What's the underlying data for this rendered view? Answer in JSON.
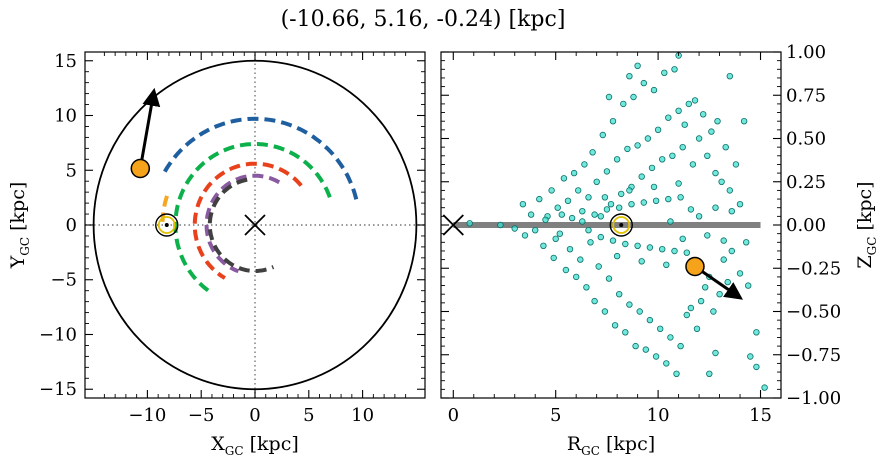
{
  "figure": {
    "title": "(-10.66, 5.16, -0.24) [kpc]"
  },
  "chart_data": [
    {
      "type": "line",
      "panel": "left",
      "xlabel": "X_GC [kpc]",
      "ylabel": "Y_GC [kpc]",
      "xlabel_main": "X",
      "xlabel_sub": "GC",
      "xlabel_unit": " [kpc]",
      "ylabel_main": "Y",
      "ylabel_sub": "GC",
      "ylabel_unit": " [kpc]",
      "xlim": [
        -15.8,
        15.8
      ],
      "ylim": [
        -15.8,
        15.8
      ],
      "xticks": [
        -10,
        -5,
        0,
        5,
        10
      ],
      "yticks": [
        -15,
        -10,
        -5,
        0,
        5,
        10,
        15
      ],
      "xtick_labels": [
        "−10",
        "−5",
        "0",
        "5",
        "10"
      ],
      "ytick_labels": [
        "−15",
        "−10",
        "−5",
        "0",
        "5",
        "10",
        "15"
      ],
      "boundary_circle_radius": 15,
      "crosshair_lines": {
        "x": 0,
        "y": 0,
        "style": "dotted"
      },
      "arms": [
        {
          "color": "#1f5fa0",
          "radius": 9.7,
          "theta_deg": [
            14,
            152
          ]
        },
        {
          "color": "#0db14b",
          "radius": 7.4,
          "theta_deg": [
            20,
            235
          ]
        },
        {
          "color": "#f5a623",
          "radius": 8.6,
          "theta_deg": [
            162,
            178
          ]
        },
        {
          "color": "#e8411b",
          "radius": 5.6,
          "theta_deg": [
            40,
            240
          ]
        },
        {
          "color": "#8a5aa0",
          "radius": 4.5,
          "theta_deg": [
            60,
            250
          ]
        },
        {
          "color": "#404040",
          "radius": 4.2,
          "theta_deg": [
            100,
            295
          ]
        }
      ],
      "galactic_center": {
        "x": 0,
        "y": 0,
        "marker": "x"
      },
      "sun": {
        "x": -8.2,
        "y": 0.0
      },
      "object": {
        "x": -10.66,
        "y": 5.16,
        "color": "#f5a31a"
      },
      "velocity_arrow": {
        "from": [
          -10.66,
          5.16
        ],
        "to": [
          -9.4,
          12.2
        ]
      }
    },
    {
      "type": "scatter",
      "panel": "right",
      "xlabel": "R_GC [kpc]",
      "ylabel": "Z_GC [kpc]",
      "xlabel_main": "R",
      "xlabel_sub": "GC",
      "xlabel_unit": " [kpc]",
      "ylabel_main": "Z",
      "ylabel_sub": "GC",
      "ylabel_unit": " [kpc]",
      "xlim": [
        -0.6,
        16
      ],
      "ylim": [
        -1.0,
        1.0
      ],
      "xticks": [
        0,
        5,
        10,
        15
      ],
      "yticks": [
        -1.0,
        -0.75,
        -0.5,
        -0.25,
        0.0,
        0.25,
        0.5,
        0.75,
        1.0
      ],
      "xtick_labels": [
        "0",
        "5",
        "10",
        "15"
      ],
      "ytick_labels": [
        "−1.00",
        "−0.75",
        "−0.50",
        "−0.25",
        "0.00",
        "0.25",
        "0.50",
        "0.75",
        "1.00"
      ],
      "yaxis_side": "right",
      "disk_line": {
        "x": [
          0,
          15
        ],
        "z": 0.0,
        "color": "#808080"
      },
      "galactic_center": {
        "x": 0,
        "y": 0,
        "marker": "x"
      },
      "sun": {
        "x": 8.2,
        "y": 0.0
      },
      "object": {
        "x": 11.8,
        "y": -0.24,
        "color": "#f5a31a"
      },
      "velocity_arrow": {
        "from": [
          11.8,
          -0.24
        ],
        "to": [
          14.0,
          -0.42
        ]
      },
      "scatter_style": {
        "fill": "#40e0d0",
        "edge": "#0a6e66"
      },
      "scatter_points": [
        [
          0.8,
          0.01
        ],
        [
          2.3,
          0.0
        ],
        [
          3.4,
          0.12
        ],
        [
          3.0,
          -0.02
        ],
        [
          3.5,
          -0.06
        ],
        [
          4.2,
          0.15
        ],
        [
          4.4,
          -0.12
        ],
        [
          4.6,
          0.05
        ],
        [
          4.8,
          0.2
        ],
        [
          4.9,
          -0.19
        ],
        [
          5.1,
          0.1
        ],
        [
          5.2,
          -0.05
        ],
        [
          5.4,
          0.27
        ],
        [
          5.5,
          -0.26
        ],
        [
          5.6,
          0.14
        ],
        [
          5.7,
          -0.14
        ],
        [
          5.8,
          0.04
        ],
        [
          5.9,
          0.3
        ],
        [
          6.0,
          -0.3
        ],
        [
          6.1,
          0.2
        ],
        [
          6.2,
          -0.2
        ],
        [
          6.3,
          0.08
        ],
        [
          6.4,
          0.35
        ],
        [
          6.5,
          -0.36
        ],
        [
          6.6,
          0.16
        ],
        [
          6.7,
          -0.1
        ],
        [
          6.8,
          0.42
        ],
        [
          6.9,
          -0.44
        ],
        [
          7.0,
          0.25
        ],
        [
          7.1,
          -0.24
        ],
        [
          7.2,
          0.05
        ],
        [
          7.3,
          0.52
        ],
        [
          7.4,
          -0.5
        ],
        [
          7.5,
          0.31
        ],
        [
          7.6,
          -0.31
        ],
        [
          7.7,
          0.12
        ],
        [
          7.8,
          0.6
        ],
        [
          7.9,
          -0.58
        ],
        [
          8.0,
          0.38
        ],
        [
          8.1,
          -0.4
        ],
        [
          8.2,
          0.18
        ],
        [
          8.3,
          0.7
        ],
        [
          8.4,
          -0.62
        ],
        [
          8.5,
          0.44
        ],
        [
          8.6,
          -0.46
        ],
        [
          8.7,
          0.22
        ],
        [
          8.8,
          0.74
        ],
        [
          8.9,
          -0.7
        ],
        [
          9.0,
          0.46
        ],
        [
          9.1,
          -0.5
        ],
        [
          9.2,
          0.28
        ],
        [
          9.3,
          0.82
        ],
        [
          9.4,
          -0.72
        ],
        [
          9.5,
          0.5
        ],
        [
          9.6,
          -0.55
        ],
        [
          9.7,
          0.33
        ],
        [
          9.8,
          0.78
        ],
        [
          9.9,
          -0.76
        ],
        [
          10.0,
          0.55
        ],
        [
          10.1,
          -0.6
        ],
        [
          10.2,
          0.38
        ],
        [
          10.3,
          0.88
        ],
        [
          10.4,
          -0.8
        ],
        [
          10.5,
          0.62
        ],
        [
          10.6,
          -0.65
        ],
        [
          10.7,
          0.4
        ],
        [
          10.8,
          0.9
        ],
        [
          10.9,
          -0.86
        ],
        [
          11.0,
          0.66
        ],
        [
          11.1,
          -0.7
        ],
        [
          11.2,
          0.45
        ],
        [
          11.3,
          0.58
        ],
        [
          11.4,
          -0.52
        ],
        [
          11.5,
          0.7
        ],
        [
          11.6,
          -0.48
        ],
        [
          11.7,
          0.35
        ],
        [
          11.8,
          0.72
        ],
        [
          11.9,
          -0.6
        ],
        [
          12.0,
          0.5
        ],
        [
          12.1,
          -0.44
        ],
        [
          12.2,
          0.64
        ],
        [
          12.3,
          -0.36
        ],
        [
          12.4,
          0.4
        ],
        [
          12.5,
          -0.3
        ],
        [
          12.6,
          0.54
        ],
        [
          12.7,
          -0.5
        ],
        [
          12.8,
          0.3
        ],
        [
          12.9,
          0.6
        ],
        [
          13.0,
          -0.4
        ],
        [
          13.1,
          0.25
        ],
        [
          13.2,
          -0.2
        ],
        [
          13.3,
          0.45
        ],
        [
          13.4,
          -0.33
        ],
        [
          13.5,
          0.2
        ],
        [
          13.6,
          -0.15
        ],
        [
          13.8,
          0.35
        ],
        [
          14.0,
          -0.28
        ],
        [
          14.2,
          0.6
        ],
        [
          14.4,
          -0.35
        ],
        [
          14.8,
          -0.62
        ],
        [
          6.3,
          0.02
        ],
        [
          6.6,
          -0.03
        ],
        [
          6.9,
          0.06
        ],
        [
          7.2,
          -0.07
        ],
        [
          7.5,
          0.09
        ],
        [
          7.8,
          -0.09
        ],
        [
          8.1,
          0.1
        ],
        [
          8.4,
          -0.11
        ],
        [
          8.7,
          0.12
        ],
        [
          9.0,
          -0.12
        ],
        [
          9.3,
          0.13
        ],
        [
          9.6,
          -0.13
        ],
        [
          9.9,
          0.14
        ],
        [
          10.2,
          -0.14
        ],
        [
          10.5,
          0.15
        ],
        [
          10.8,
          -0.15
        ],
        [
          11.1,
          0.16
        ],
        [
          11.4,
          -0.16
        ],
        [
          7.4,
          0.16
        ],
        [
          8.0,
          -0.18
        ],
        [
          8.6,
          0.2
        ],
        [
          9.2,
          -0.21
        ],
        [
          9.8,
          0.22
        ],
        [
          10.4,
          -0.23
        ],
        [
          11.0,
          0.24
        ],
        [
          5.3,
          0.06
        ],
        [
          5.0,
          -0.08
        ],
        [
          4.5,
          0.03
        ],
        [
          4.0,
          -0.03
        ],
        [
          3.8,
          0.06
        ],
        [
          12.0,
          0.05
        ],
        [
          12.4,
          -0.06
        ],
        [
          12.8,
          0.1
        ],
        [
          13.2,
          -0.09
        ],
        [
          13.6,
          0.08
        ],
        [
          14.0,
          0.12
        ],
        [
          14.3,
          -0.1
        ],
        [
          11.6,
          0.09
        ],
        [
          11.2,
          -0.08
        ],
        [
          10.6,
          0.02
        ],
        [
          11.0,
          0.98
        ],
        [
          14.8,
          -0.82
        ],
        [
          15.2,
          -0.94
        ],
        [
          14.5,
          -0.76
        ],
        [
          12.5,
          -0.86
        ],
        [
          12.8,
          -0.74
        ],
        [
          9.0,
          0.92
        ],
        [
          8.6,
          0.86
        ],
        [
          7.6,
          0.74
        ],
        [
          13.5,
          0.86
        ]
      ]
    }
  ]
}
